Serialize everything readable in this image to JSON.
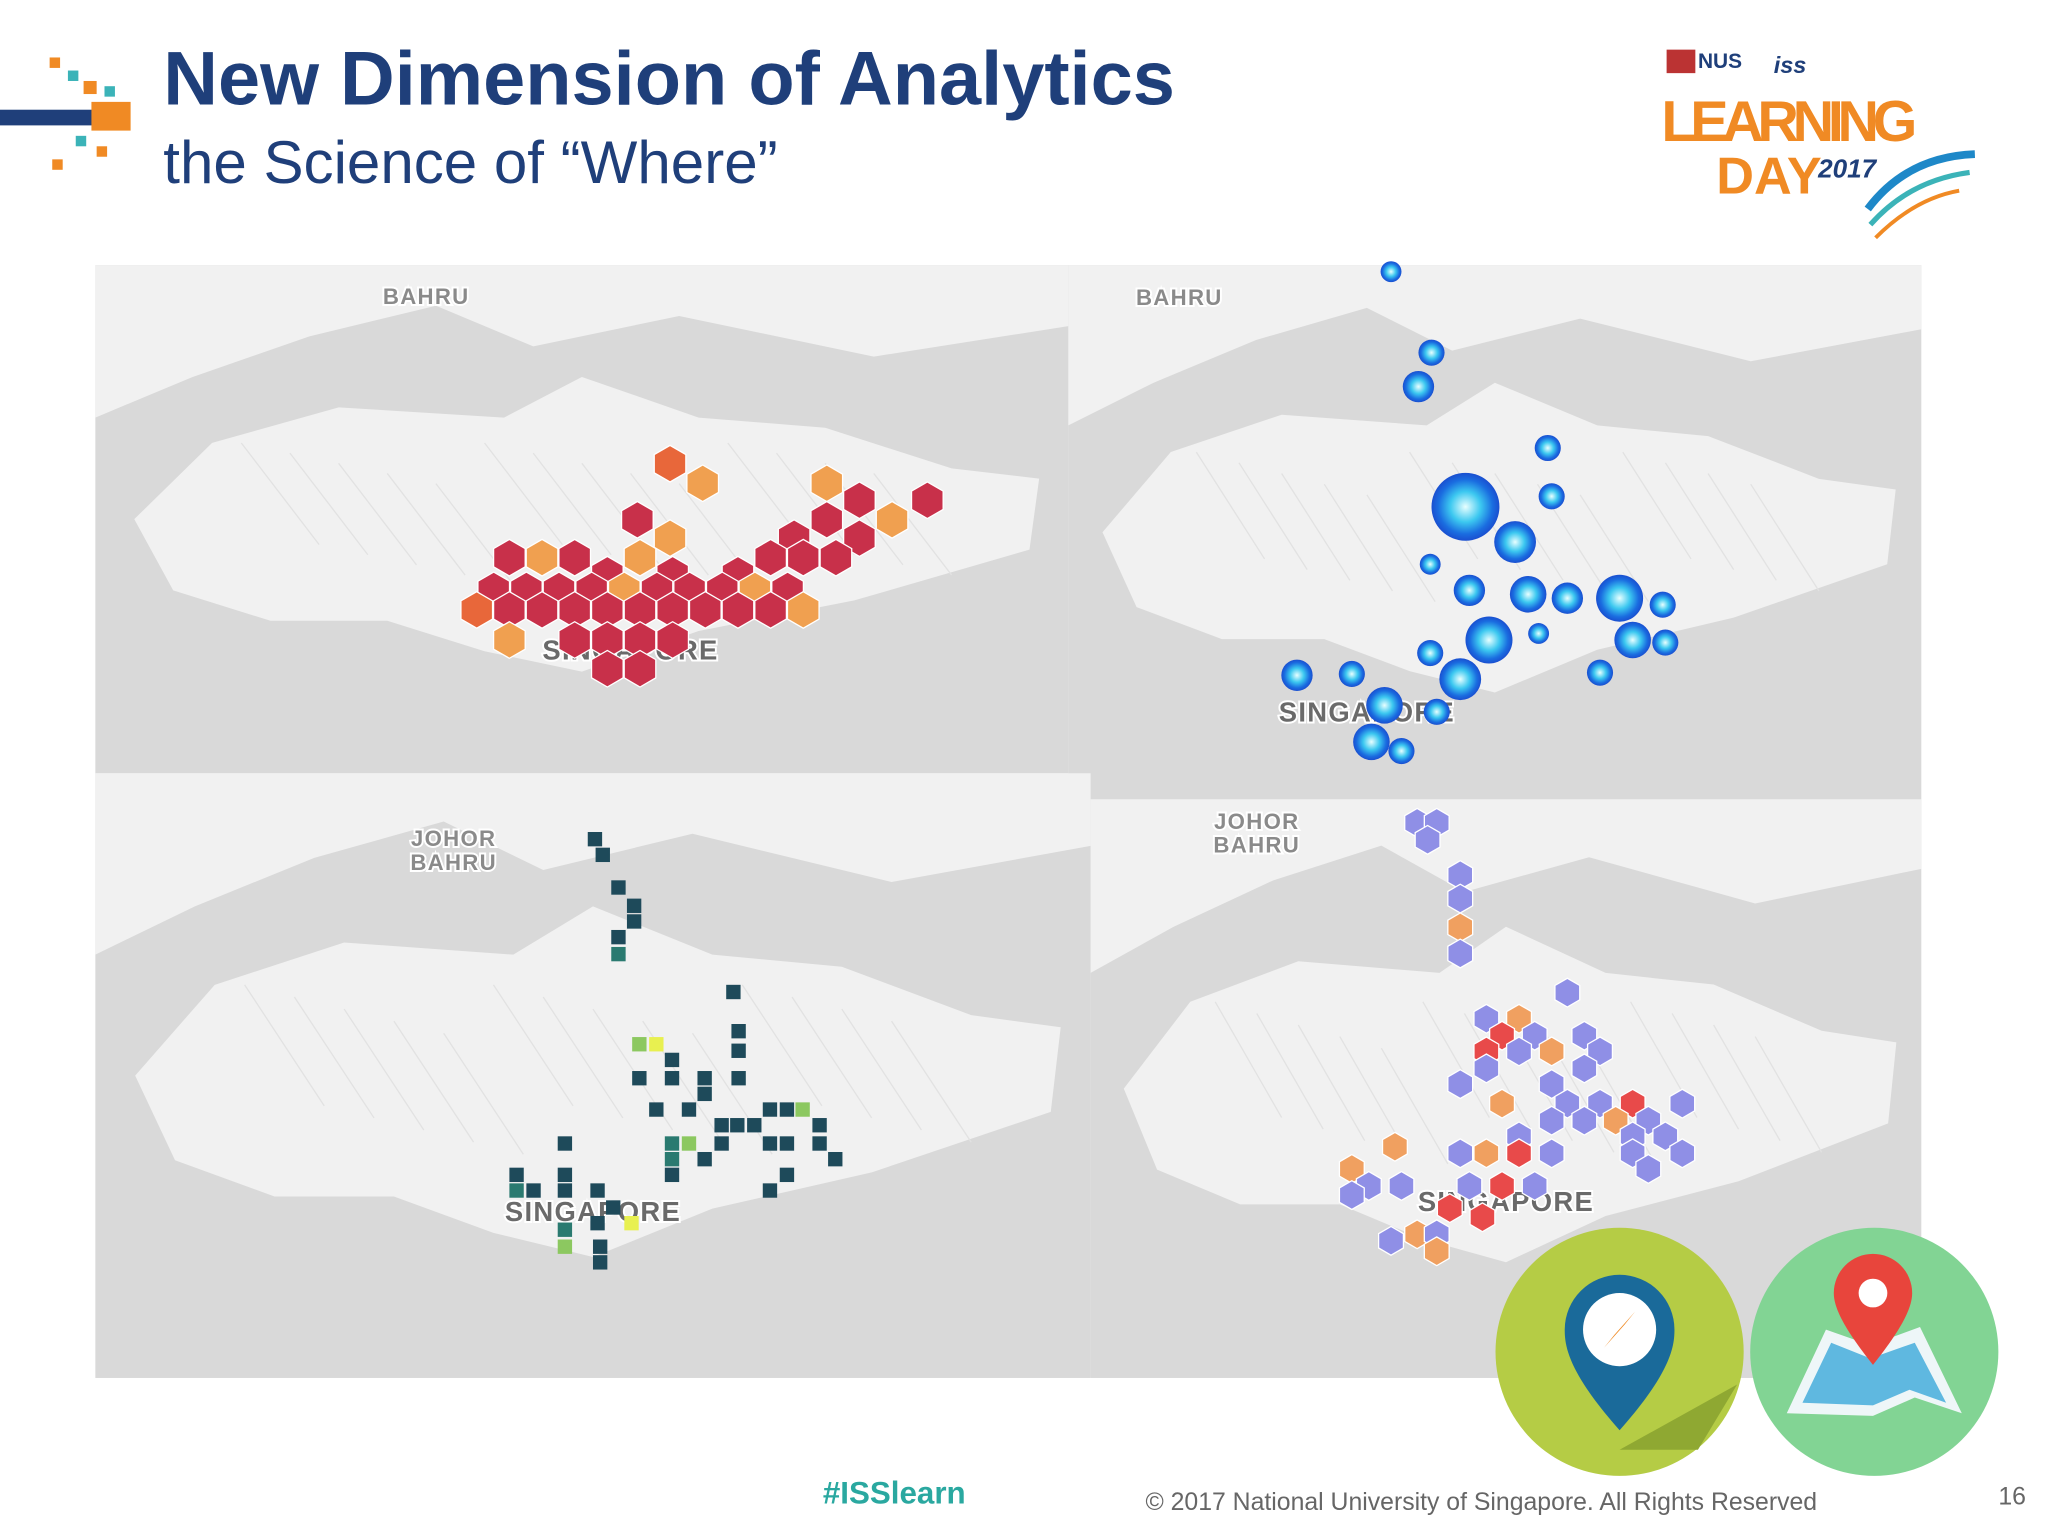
{
  "header": {
    "title": "New Dimension of Analytics",
    "subtitle": "the Science of “Where”"
  },
  "logo": {
    "nus": "NUS",
    "iss": "iss",
    "learning": "LEARNING",
    "day": "DAY",
    "year": "2017"
  },
  "maps": [
    {
      "labels": [
        "BAHRU",
        "SINGAPORE"
      ]
    },
    {
      "labels": [
        "BAHRU",
        "SINGAPORE"
      ]
    },
    {
      "labels": [
        "JOHOR",
        "BAHRU",
        "SINGAPORE"
      ]
    },
    {
      "labels": [
        "JOHOR",
        "BAHRU",
        "SINGAPORE"
      ]
    }
  ],
  "footer": {
    "hashtag": "#ISSlearn",
    "copyright": "© 2017 National University of Singapore. All Rights Reserved",
    "page": "16"
  }
}
